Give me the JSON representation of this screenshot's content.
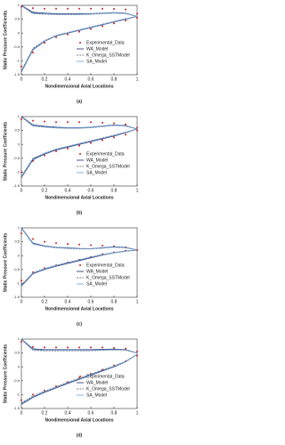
{
  "chart_data": [
    {
      "type": "line",
      "caption": "(a)",
      "x_label": "Nondimensional Axial Locations",
      "y_label": "Static Pressure Coefficients",
      "xlim": [
        0,
        1
      ],
      "xticks": [
        0,
        0.2,
        0.4,
        0.6,
        0.8,
        1
      ],
      "ylim": [
        -1.5,
        1
      ],
      "yticks": [
        -1.5,
        -1,
        -0.5,
        0,
        0.5,
        1
      ],
      "x": [
        0,
        0.1,
        0.2,
        0.3,
        0.4,
        0.5,
        0.6,
        0.7,
        0.8,
        0.9,
        1
      ],
      "series": [
        {
          "name": "Experimental_Data",
          "color": "#cc1f1f",
          "style": "points",
          "upper": [
            0.95,
            0.9,
            0.88,
            0.88,
            0.88,
            0.88,
            0.88,
            0.88,
            0.87,
            0.85,
            0.7
          ],
          "lower": [
            -1.2,
            -0.7,
            -0.35,
            -0.15,
            -0.05,
            0.05,
            0.15,
            0.25,
            0.35,
            0.45,
            0.55
          ]
        },
        {
          "name": "WA_Model",
          "color": "#1b2a6b",
          "style": "solid",
          "upper": [
            1.0,
            0.75,
            0.72,
            0.7,
            0.7,
            0.7,
            0.7,
            0.72,
            0.74,
            0.72,
            0.6
          ],
          "lower": [
            -1.4,
            -0.6,
            -0.3,
            -0.1,
            0.0,
            0.1,
            0.2,
            0.3,
            0.4,
            0.5,
            0.6
          ]
        },
        {
          "name": "K_Omega_SSTModel",
          "color": "#555555",
          "style": "dashed",
          "upper": [
            0.98,
            0.7,
            0.68,
            0.67,
            0.67,
            0.67,
            0.68,
            0.7,
            0.72,
            0.7,
            0.6
          ],
          "lower": [
            -1.35,
            -0.55,
            -0.27,
            -0.08,
            0.02,
            0.12,
            0.22,
            0.32,
            0.42,
            0.52,
            0.6
          ]
        },
        {
          "name": "SA_Model",
          "color": "#6a9fd8",
          "style": "solid",
          "upper": [
            0.99,
            0.72,
            0.7,
            0.68,
            0.68,
            0.68,
            0.69,
            0.71,
            0.73,
            0.71,
            0.6
          ],
          "lower": [
            -1.38,
            -0.58,
            -0.29,
            -0.09,
            0.01,
            0.11,
            0.21,
            0.31,
            0.41,
            0.51,
            0.6
          ]
        }
      ]
    },
    {
      "type": "line",
      "caption": "(b)",
      "x_label": "Nondimensional Axial Locations",
      "y_label": "Static Pressure Coefficients",
      "xlim": [
        0,
        1
      ],
      "xticks": [
        0,
        0.2,
        0.4,
        0.6,
        0.8,
        1
      ],
      "ylim": [
        -1.5,
        1
      ],
      "yticks": [
        -1.5,
        -1,
        -0.5,
        0,
        0.5,
        1
      ],
      "x": [
        0,
        0.1,
        0.2,
        0.3,
        0.4,
        0.5,
        0.6,
        0.7,
        0.8,
        0.9,
        1
      ],
      "series": [
        {
          "name": "Experimental_Data",
          "color": "#cc1f1f",
          "style": "points",
          "upper": [
            0.9,
            0.85,
            0.82,
            0.8,
            0.8,
            0.8,
            0.8,
            0.78,
            0.76,
            0.72,
            0.6
          ],
          "lower": [
            -1.0,
            -0.6,
            -0.4,
            -0.25,
            -0.15,
            -0.05,
            0.05,
            0.15,
            0.25,
            0.35,
            0.5
          ]
        },
        {
          "name": "WA_Model",
          "color": "#1b2a6b",
          "style": "solid",
          "upper": [
            1.0,
            0.7,
            0.65,
            0.62,
            0.6,
            0.6,
            0.62,
            0.66,
            0.7,
            0.68,
            0.55
          ],
          "lower": [
            -1.2,
            -0.55,
            -0.35,
            -0.2,
            -0.1,
            0.0,
            0.1,
            0.2,
            0.3,
            0.42,
            0.55
          ]
        },
        {
          "name": "K_Omega_SSTModel",
          "color": "#555555",
          "style": "dashed",
          "upper": [
            0.98,
            0.66,
            0.62,
            0.59,
            0.58,
            0.58,
            0.6,
            0.64,
            0.68,
            0.66,
            0.55
          ],
          "lower": [
            -1.15,
            -0.5,
            -0.32,
            -0.17,
            -0.07,
            0.03,
            0.13,
            0.23,
            0.33,
            0.44,
            0.55
          ]
        },
        {
          "name": "SA_Model",
          "color": "#6a9fd8",
          "style": "solid",
          "upper": [
            0.99,
            0.68,
            0.63,
            0.6,
            0.59,
            0.59,
            0.61,
            0.65,
            0.69,
            0.67,
            0.55
          ],
          "lower": [
            -1.18,
            -0.52,
            -0.33,
            -0.18,
            -0.08,
            0.02,
            0.12,
            0.22,
            0.32,
            0.43,
            0.55
          ]
        }
      ]
    },
    {
      "type": "line",
      "caption": "(c)",
      "x_label": "Nondimensional Axial Locations",
      "y_label": "Static Pressure Coefficients",
      "xlim": [
        0,
        1
      ],
      "xticks": [
        0,
        0.2,
        0.4,
        0.6,
        0.8,
        1
      ],
      "ylim": [
        -1.5,
        1
      ],
      "yticks": [
        -1.5,
        -1,
        -0.5,
        0,
        0.5,
        1
      ],
      "x": [
        0,
        0.1,
        0.2,
        0.3,
        0.4,
        0.5,
        0.6,
        0.7,
        0.8,
        0.9,
        1
      ],
      "series": [
        {
          "name": "Experimental_Data",
          "color": "#cc1f1f",
          "style": "points",
          "upper": [
            0.8,
            0.6,
            0.5,
            0.45,
            0.42,
            0.4,
            0.38,
            0.36,
            0.34,
            0.3,
            0.2
          ],
          "lower": [
            -0.9,
            -0.6,
            -0.45,
            -0.35,
            -0.25,
            -0.15,
            -0.05,
            0.05,
            0.12,
            0.18,
            0.2
          ]
        },
        {
          "name": "WA_Model",
          "color": "#1b2a6b",
          "style": "solid",
          "upper": [
            1.0,
            0.45,
            0.35,
            0.3,
            0.28,
            0.26,
            0.25,
            0.28,
            0.32,
            0.3,
            0.2
          ],
          "lower": [
            -1.1,
            -0.65,
            -0.5,
            -0.38,
            -0.28,
            -0.18,
            -0.08,
            0.02,
            0.1,
            0.16,
            0.2
          ]
        },
        {
          "name": "K_Omega_SSTModel",
          "color": "#555555",
          "style": "dashed",
          "upper": [
            0.98,
            0.42,
            0.33,
            0.28,
            0.26,
            0.24,
            0.24,
            0.27,
            0.3,
            0.28,
            0.2
          ],
          "lower": [
            -1.05,
            -0.62,
            -0.47,
            -0.35,
            -0.25,
            -0.15,
            -0.05,
            0.04,
            0.11,
            0.17,
            0.2
          ]
        },
        {
          "name": "SA_Model",
          "color": "#6a9fd8",
          "style": "solid",
          "upper": [
            0.99,
            0.43,
            0.34,
            0.29,
            0.27,
            0.25,
            0.25,
            0.27,
            0.31,
            0.29,
            0.2
          ],
          "lower": [
            -1.08,
            -0.63,
            -0.48,
            -0.36,
            -0.26,
            -0.16,
            -0.06,
            0.03,
            0.1,
            0.16,
            0.2
          ]
        }
      ]
    },
    {
      "type": "line",
      "caption": "(d)",
      "x_label": "Nondimensional Axial Locations",
      "y_label": "Static Pressure Coefficients",
      "xlim": [
        0,
        1
      ],
      "xticks": [
        0,
        0.2,
        0.4,
        0.6,
        0.8,
        1
      ],
      "ylim": [
        -1.5,
        1
      ],
      "yticks": [
        -1.5,
        -1,
        -0.5,
        0,
        0.5,
        1
      ],
      "x": [
        0,
        0.1,
        0.2,
        0.3,
        0.4,
        0.5,
        0.6,
        0.7,
        0.8,
        0.9,
        1
      ],
      "series": [
        {
          "name": "Experimental_Data",
          "color": "#cc1f1f",
          "style": "points",
          "upper": [
            0.9,
            0.72,
            0.7,
            0.7,
            0.7,
            0.7,
            0.7,
            0.7,
            0.68,
            0.66,
            0.55
          ],
          "lower": [
            -1.2,
            -1.0,
            -0.85,
            -0.7,
            -0.55,
            -0.4,
            -0.25,
            -0.1,
            0.05,
            0.2,
            0.4
          ]
        },
        {
          "name": "WA_Model",
          "color": "#1b2a6b",
          "style": "solid",
          "upper": [
            1.0,
            0.65,
            0.62,
            0.62,
            0.62,
            0.62,
            0.62,
            0.63,
            0.64,
            0.62,
            0.5
          ],
          "lower": [
            -1.35,
            -1.1,
            -0.92,
            -0.76,
            -0.6,
            -0.45,
            -0.3,
            -0.15,
            0.0,
            0.18,
            0.45
          ]
        },
        {
          "name": "K_Omega_SSTModel",
          "color": "#555555",
          "style": "dashed",
          "upper": [
            0.98,
            0.6,
            0.58,
            0.58,
            0.58,
            0.58,
            0.58,
            0.6,
            0.61,
            0.6,
            0.5
          ],
          "lower": [
            -1.3,
            -1.05,
            -0.88,
            -0.72,
            -0.56,
            -0.41,
            -0.26,
            -0.11,
            0.03,
            0.2,
            0.45
          ]
        },
        {
          "name": "SA_Model",
          "color": "#6a9fd8",
          "style": "solid",
          "upper": [
            0.99,
            0.62,
            0.6,
            0.6,
            0.6,
            0.6,
            0.6,
            0.61,
            0.62,
            0.61,
            0.5
          ],
          "lower": [
            -1.32,
            -1.08,
            -0.9,
            -0.74,
            -0.58,
            -0.43,
            -0.28,
            -0.13,
            0.01,
            0.19,
            0.45
          ]
        }
      ]
    }
  ]
}
